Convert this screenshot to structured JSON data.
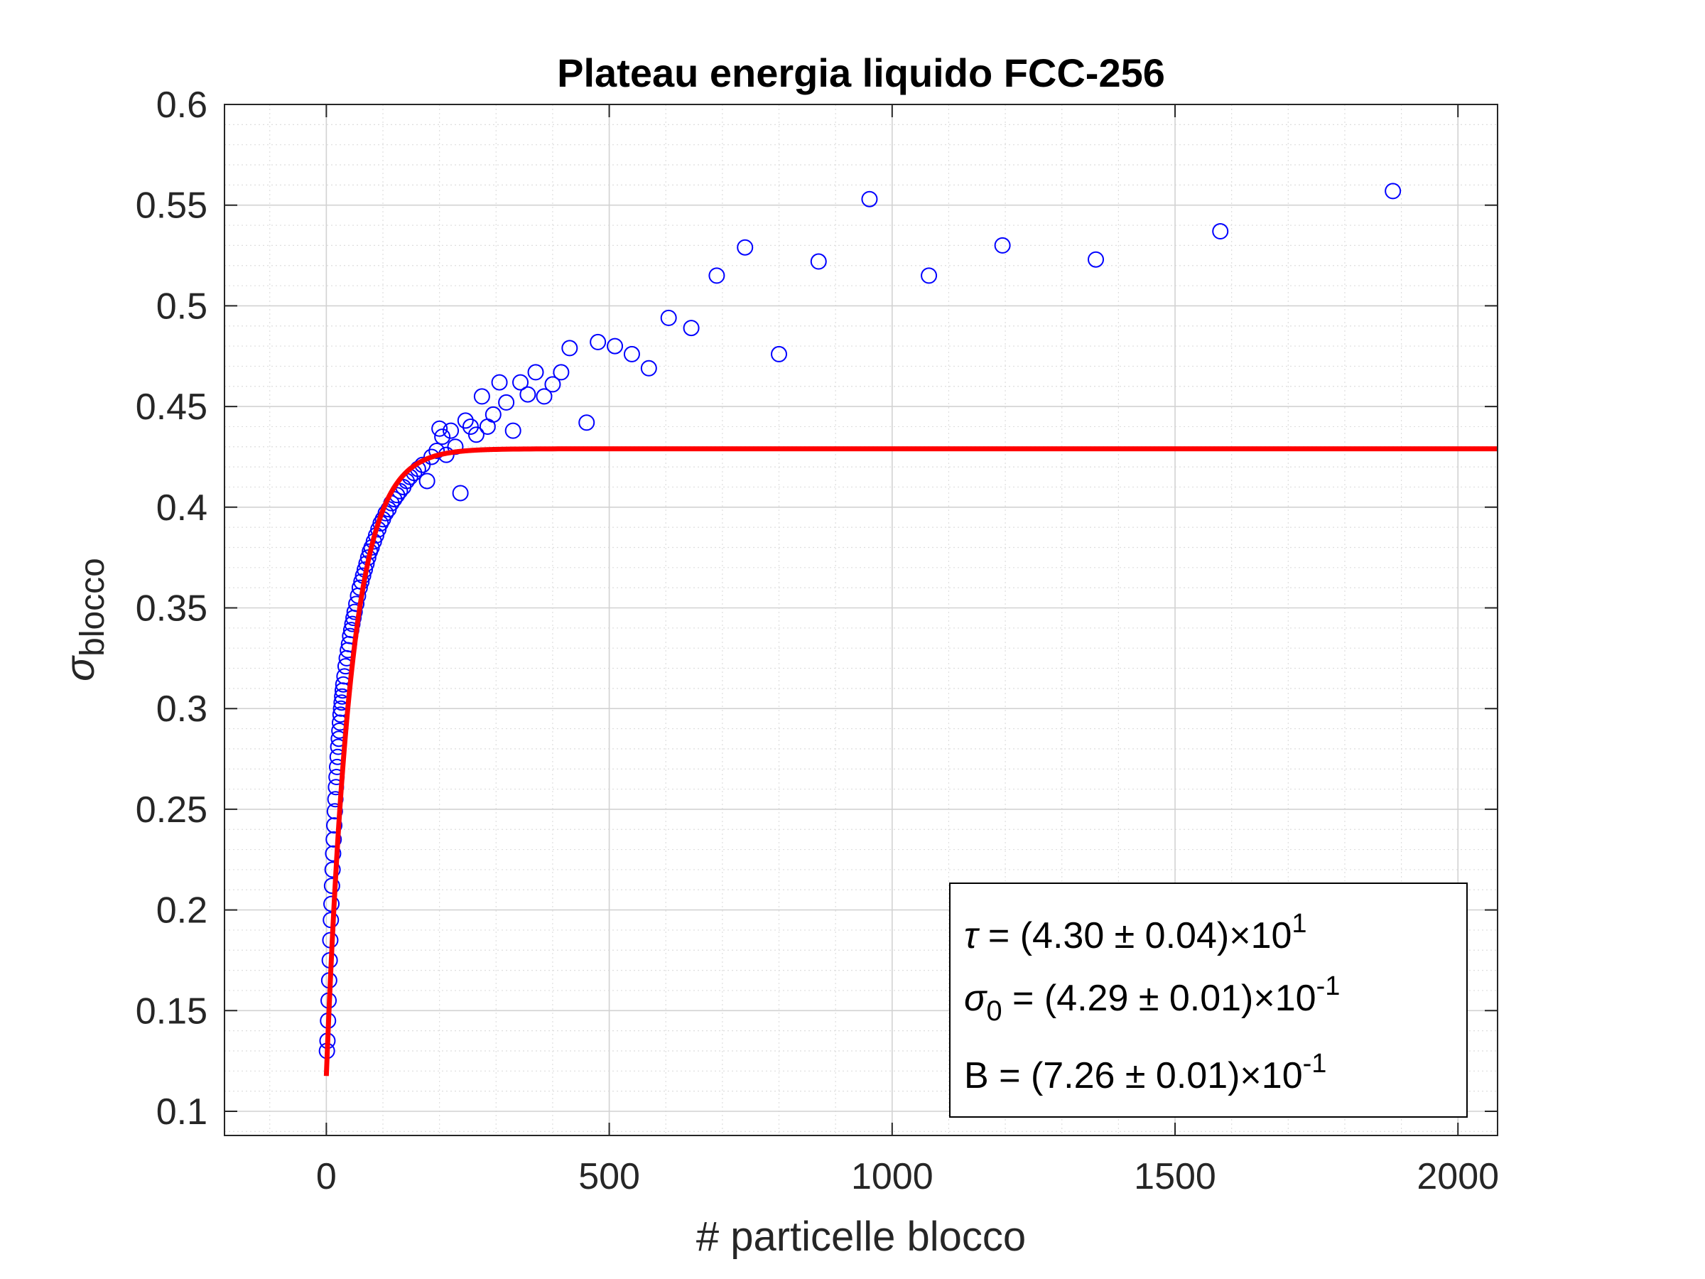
{
  "chart_data": {
    "type": "scatter",
    "title": "Plateau energia liquido FCC-256",
    "xlabel": "# particelle blocco",
    "ylabel": {
      "symbol": "σ",
      "subscript": "blocco"
    },
    "xlim": [
      -180,
      2070
    ],
    "ylim": [
      0.088,
      0.6
    ],
    "xticks": [
      0,
      500,
      1000,
      1500,
      2000
    ],
    "yticks": [
      0.1,
      0.15,
      0.2,
      0.25,
      0.3,
      0.35,
      0.4,
      0.45,
      0.5,
      0.55,
      0.6
    ],
    "xtick_labels": [
      "0",
      "500",
      "1000",
      "1500",
      "2000"
    ],
    "ytick_labels": [
      "0.1",
      "0.15",
      "0.2",
      "0.25",
      "0.3",
      "0.35",
      "0.4",
      "0.45",
      "0.5",
      "0.55",
      "0.6"
    ],
    "grid": true,
    "minor_grid": true,
    "series": [
      {
        "kind": "scatter",
        "marker": "circle-open",
        "color": "#0000ff",
        "x": [
          1,
          2,
          3,
          4,
          5,
          6,
          7,
          8,
          9,
          10,
          11,
          12,
          13,
          14,
          15,
          16,
          17,
          18,
          19,
          20,
          21,
          22,
          23,
          24,
          25,
          26,
          27,
          28,
          29,
          30,
          32,
          34,
          36,
          38,
          40,
          42,
          44,
          46,
          48,
          50,
          53,
          56,
          59,
          62,
          65,
          68,
          71,
          74,
          77,
          80,
          84,
          88,
          92,
          96,
          100,
          105,
          110,
          115,
          120,
          125,
          130,
          136,
          142,
          148,
          155,
          162,
          170,
          178,
          186,
          195,
          200,
          205,
          212,
          220,
          228,
          237,
          246,
          255,
          265,
          275,
          285,
          295,
          306,
          318,
          330,
          343,
          356,
          370,
          385,
          400,
          415,
          430,
          460,
          480,
          510,
          540,
          570,
          605,
          645,
          690,
          740,
          800,
          870,
          960,
          1065,
          1195,
          1360,
          1580,
          1885
        ],
        "y": [
          0.13,
          0.135,
          0.145,
          0.155,
          0.165,
          0.175,
          0.185,
          0.195,
          0.203,
          0.212,
          0.22,
          0.228,
          0.235,
          0.242,
          0.249,
          0.255,
          0.261,
          0.266,
          0.271,
          0.276,
          0.281,
          0.285,
          0.289,
          0.293,
          0.297,
          0.3,
          0.303,
          0.306,
          0.309,
          0.312,
          0.316,
          0.321,
          0.325,
          0.329,
          0.332,
          0.336,
          0.339,
          0.342,
          0.345,
          0.348,
          0.352,
          0.356,
          0.36,
          0.363,
          0.366,
          0.369,
          0.372,
          0.375,
          0.378,
          0.38,
          0.383,
          0.386,
          0.389,
          0.392,
          0.394,
          0.397,
          0.399,
          0.402,
          0.404,
          0.406,
          0.408,
          0.41,
          0.413,
          0.415,
          0.417,
          0.419,
          0.421,
          0.413,
          0.425,
          0.428,
          0.439,
          0.435,
          0.426,
          0.438,
          0.43,
          0.407,
          0.443,
          0.44,
          0.436,
          0.455,
          0.44,
          0.446,
          0.462,
          0.452,
          0.438,
          0.462,
          0.456,
          0.467,
          0.455,
          0.461,
          0.467,
          0.479,
          0.442,
          0.482,
          0.48,
          0.476,
          0.469,
          0.494,
          0.489,
          0.515,
          0.529,
          0.476,
          0.522,
          0.553,
          0.515,
          0.53,
          0.523,
          0.537,
          0.557
        ]
      },
      {
        "kind": "line",
        "color": "#ff0000",
        "model": "sigma0 * (1 - B * exp(-x / tau))",
        "params": {
          "tau": 43.0,
          "sigma0": 0.429,
          "B": 0.726
        }
      }
    ],
    "annotations": [
      {
        "symbol": "τ",
        "subscript": "",
        "text": " = (4.30 ± 0.04)×10",
        "exponent": "1"
      },
      {
        "symbol": "σ",
        "subscript": "0",
        "text": " = (4.29 ± 0.01)×10",
        "exponent": "-1"
      },
      {
        "symbol": "",
        "subscript": "",
        "text": "B = (7.26 ± 0.01)×10",
        "exponent": "-1"
      }
    ]
  }
}
